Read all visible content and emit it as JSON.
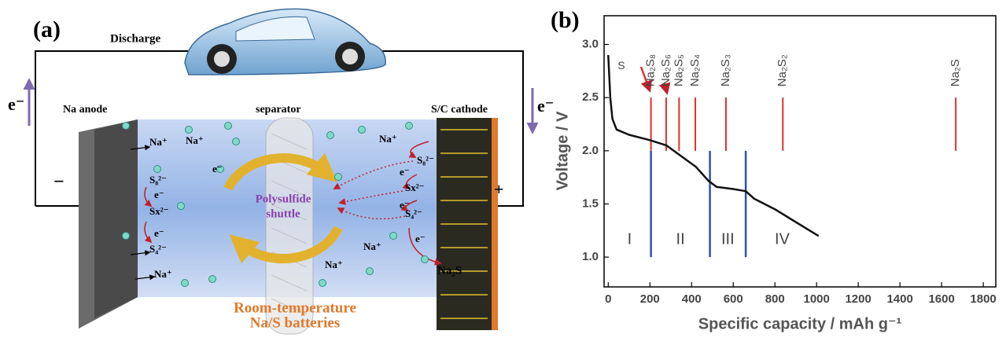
{
  "panel_a": {
    "label": "(a)",
    "discharge": "Discharge",
    "electron_left": "e⁻",
    "electron_right": "e⁻",
    "anode": "Na anode",
    "separator": "separator",
    "cathode": "S/C cathode",
    "minus": "−",
    "plus": "+",
    "shuttle": [
      "Polysulfide",
      "shuttle"
    ],
    "caption": [
      "Room-temperature",
      "Na/S batteries"
    ],
    "species": [
      "Na⁺",
      "Na⁺",
      "S₈²⁻",
      "e⁻",
      "Sx²⁻",
      "e⁻",
      "S₄²⁻",
      "Na⁺",
      "e⁻",
      "Na⁺",
      "S₈²⁻",
      "e⁻",
      "Sx²⁻",
      "e⁻",
      "S₄²⁻",
      "e⁻",
      "Na⁺",
      "Na⁺",
      "Na₂S"
    ]
  },
  "chart_data": {
    "type": "line",
    "panel_label": "(b)",
    "x_label": "Specific capacity / mAh g⁻¹",
    "y_label": "Voltage / V",
    "x": [
      0,
      10,
      20,
      40,
      100,
      200,
      280,
      350,
      420,
      480,
      520,
      600,
      660,
      700,
      800,
      900,
      1000,
      1010
    ],
    "series": [
      {
        "color": "#111111",
        "values": [
          2.9,
          2.5,
          2.3,
          2.2,
          2.15,
          2.1,
          2.05,
          1.95,
          1.85,
          1.72,
          1.66,
          1.64,
          1.62,
          1.55,
          1.45,
          1.33,
          1.21,
          1.2
        ]
      }
    ],
    "xlim": [
      -20,
      1860
    ],
    "ylim": [
      0.72,
      3.27
    ],
    "xticks": [
      0,
      200,
      400,
      600,
      800,
      1000,
      1200,
      1400,
      1600,
      1800
    ],
    "yticks": [
      {
        "value": 1,
        "label": "1.0"
      },
      1.5,
      {
        "value": 2,
        "label": "2.0"
      },
      2.5,
      {
        "value": 3,
        "label": "3.0"
      }
    ],
    "sulfur_label": "S",
    "phase_lines": {
      "color": "#e03030",
      "x": [
        205,
        278,
        340,
        418,
        565,
        838,
        1668
      ],
      "y_range": [
        2.0,
        2.5
      ],
      "labels": [
        "Na₂S₈",
        "Na₂S₆",
        "Na₂S₅",
        "Na₂S₄",
        "Na₂S₃",
        "Na₂S₂",
        "Na₂S"
      ]
    },
    "region_lines": {
      "color": "#3050b0",
      "x": [
        205,
        488,
        660
      ],
      "y_range": [
        1.0,
        2.0
      ]
    },
    "regions": [
      "I",
      "II",
      "III",
      "IV"
    ]
  }
}
